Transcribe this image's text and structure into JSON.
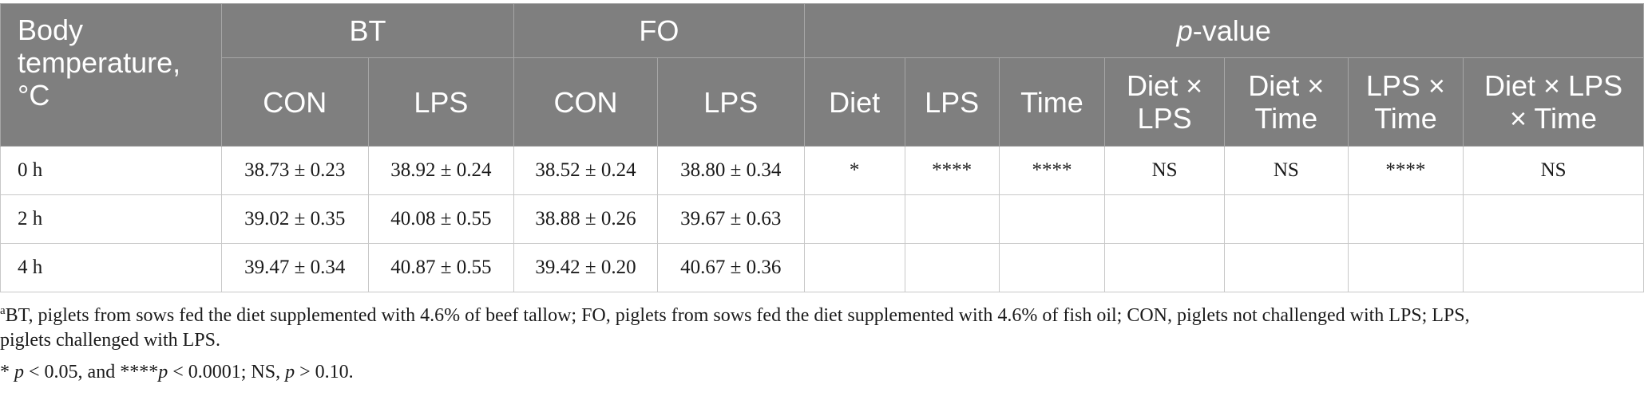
{
  "table": {
    "header": {
      "stub": [
        "Body",
        "temperature,",
        "°C"
      ],
      "groups": {
        "bt": "BT",
        "fo": "FO",
        "pvalue_p": "p",
        "pvalue_rest": "-value"
      },
      "sub": {
        "bt_con": "CON",
        "bt_lps": "LPS",
        "fo_con": "CON",
        "fo_lps": "LPS",
        "diet": "Diet",
        "lps": "LPS",
        "time": "Time",
        "diet_lps": [
          "Diet ×",
          "LPS"
        ],
        "diet_time": [
          "Diet ×",
          "Time"
        ],
        "lps_time": [
          "LPS ×",
          "Time"
        ],
        "diet_lps_time": [
          "Diet × LPS",
          "× Time"
        ]
      }
    },
    "rows": [
      {
        "label": "0 h",
        "bt_con": "38.73 ± 0.23",
        "bt_lps": "38.92 ± 0.24",
        "fo_con": "38.52 ± 0.24",
        "fo_lps": "38.80 ± 0.34",
        "diet": "*",
        "lps": "****",
        "time": "****",
        "diet_lps": "NS",
        "diet_time": "NS",
        "lps_time": "****",
        "diet_lps_time": "NS"
      },
      {
        "label": "2 h",
        "bt_con": "39.02 ± 0.35",
        "bt_lps": "40.08 ± 0.55",
        "fo_con": "38.88 ± 0.26",
        "fo_lps": "39.67 ± 0.63",
        "diet": "",
        "lps": "",
        "time": "",
        "diet_lps": "",
        "diet_time": "",
        "lps_time": "",
        "diet_lps_time": ""
      },
      {
        "label": "4 h",
        "bt_con": "39.47 ± 0.34",
        "bt_lps": "40.87 ± 0.55",
        "fo_con": "39.42 ± 0.20",
        "fo_lps": "40.67 ± 0.36",
        "diet": "",
        "lps": "",
        "time": "",
        "diet_lps": "",
        "diet_time": "",
        "lps_time": "",
        "diet_lps_time": ""
      }
    ]
  },
  "footnotes": {
    "a": {
      "marker": "a",
      "lines": [
        "BT, piglets from sows fed the diet supplemented with 4.6% of beef tallow; FO, piglets from sows fed the diet supplemented with 4.6% of fish oil; CON, piglets not challenged with LPS; LPS,",
        "piglets challenged with LPS."
      ]
    },
    "b": {
      "star1": "* ",
      "p1": "p",
      "t1": " < 0.05, and ****",
      "p2": "p",
      "t2": " < 0.0001; NS, ",
      "p3": "p",
      "t3": " > 0.10."
    }
  },
  "colors": {
    "header_bg": "#7f7f7f",
    "header_text": "#ffffff",
    "grid": "#c8c8c8"
  }
}
